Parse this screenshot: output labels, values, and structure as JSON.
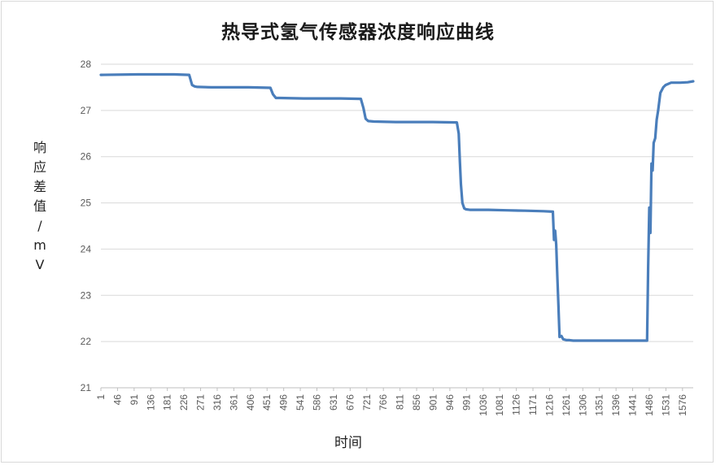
{
  "chart_data": {
    "type": "line",
    "title": "热导式氢气传感器浓度响应曲线",
    "xlabel": "时间",
    "ylabel_chars": [
      "响",
      "应",
      "差",
      "值",
      "/",
      "m",
      "V"
    ],
    "ylim": [
      21,
      28
    ],
    "yticks": [
      21,
      22,
      23,
      24,
      25,
      26,
      27,
      28
    ],
    "xlim": [
      1,
      1605
    ],
    "xticks": [
      1,
      46,
      91,
      136,
      181,
      226,
      271,
      316,
      361,
      406,
      451,
      496,
      541,
      586,
      631,
      676,
      721,
      766,
      811,
      856,
      901,
      946,
      991,
      1036,
      1081,
      1126,
      1171,
      1216,
      1261,
      1306,
      1351,
      1396,
      1441,
      1486,
      1531,
      1576
    ],
    "grid": "horizontal",
    "series": [
      {
        "color": "#4a7ebb",
        "x": [
          1,
          100,
          200,
          240,
          248,
          255,
          262,
          300,
          400,
          460,
          467,
          475,
          485,
          550,
          650,
          705,
          712,
          718,
          725,
          740,
          800,
          900,
          965,
          970,
          973,
          976,
          980,
          985,
          990,
          1000,
          1050,
          1100,
          1150,
          1200,
          1225,
          1228,
          1231,
          1234,
          1237,
          1240,
          1243,
          1248,
          1253,
          1258,
          1262,
          1270,
          1280,
          1350,
          1400,
          1470,
          1480,
          1483,
          1486,
          1489,
          1492,
          1495,
          1498,
          1502,
          1506,
          1510,
          1516,
          1524,
          1530,
          1545,
          1570,
          1590,
          1605
        ],
        "y": [
          27.77,
          27.78,
          27.78,
          27.77,
          27.55,
          27.52,
          27.51,
          27.5,
          27.5,
          27.49,
          27.35,
          27.27,
          27.27,
          27.26,
          27.26,
          27.25,
          27.05,
          26.82,
          26.77,
          26.76,
          26.75,
          26.75,
          26.74,
          26.5,
          25.9,
          25.4,
          25.0,
          24.88,
          24.86,
          24.85,
          24.85,
          24.84,
          24.83,
          24.82,
          24.81,
          24.2,
          24.4,
          24.1,
          23.4,
          22.8,
          22.1,
          22.12,
          22.05,
          22.04,
          22.03,
          22.03,
          22.02,
          22.02,
          22.02,
          22.02,
          22.02,
          23.6,
          24.9,
          24.35,
          25.85,
          25.7,
          26.3,
          26.4,
          26.8,
          27.0,
          27.38,
          27.5,
          27.55,
          27.6,
          27.6,
          27.61,
          27.63
        ]
      }
    ]
  }
}
